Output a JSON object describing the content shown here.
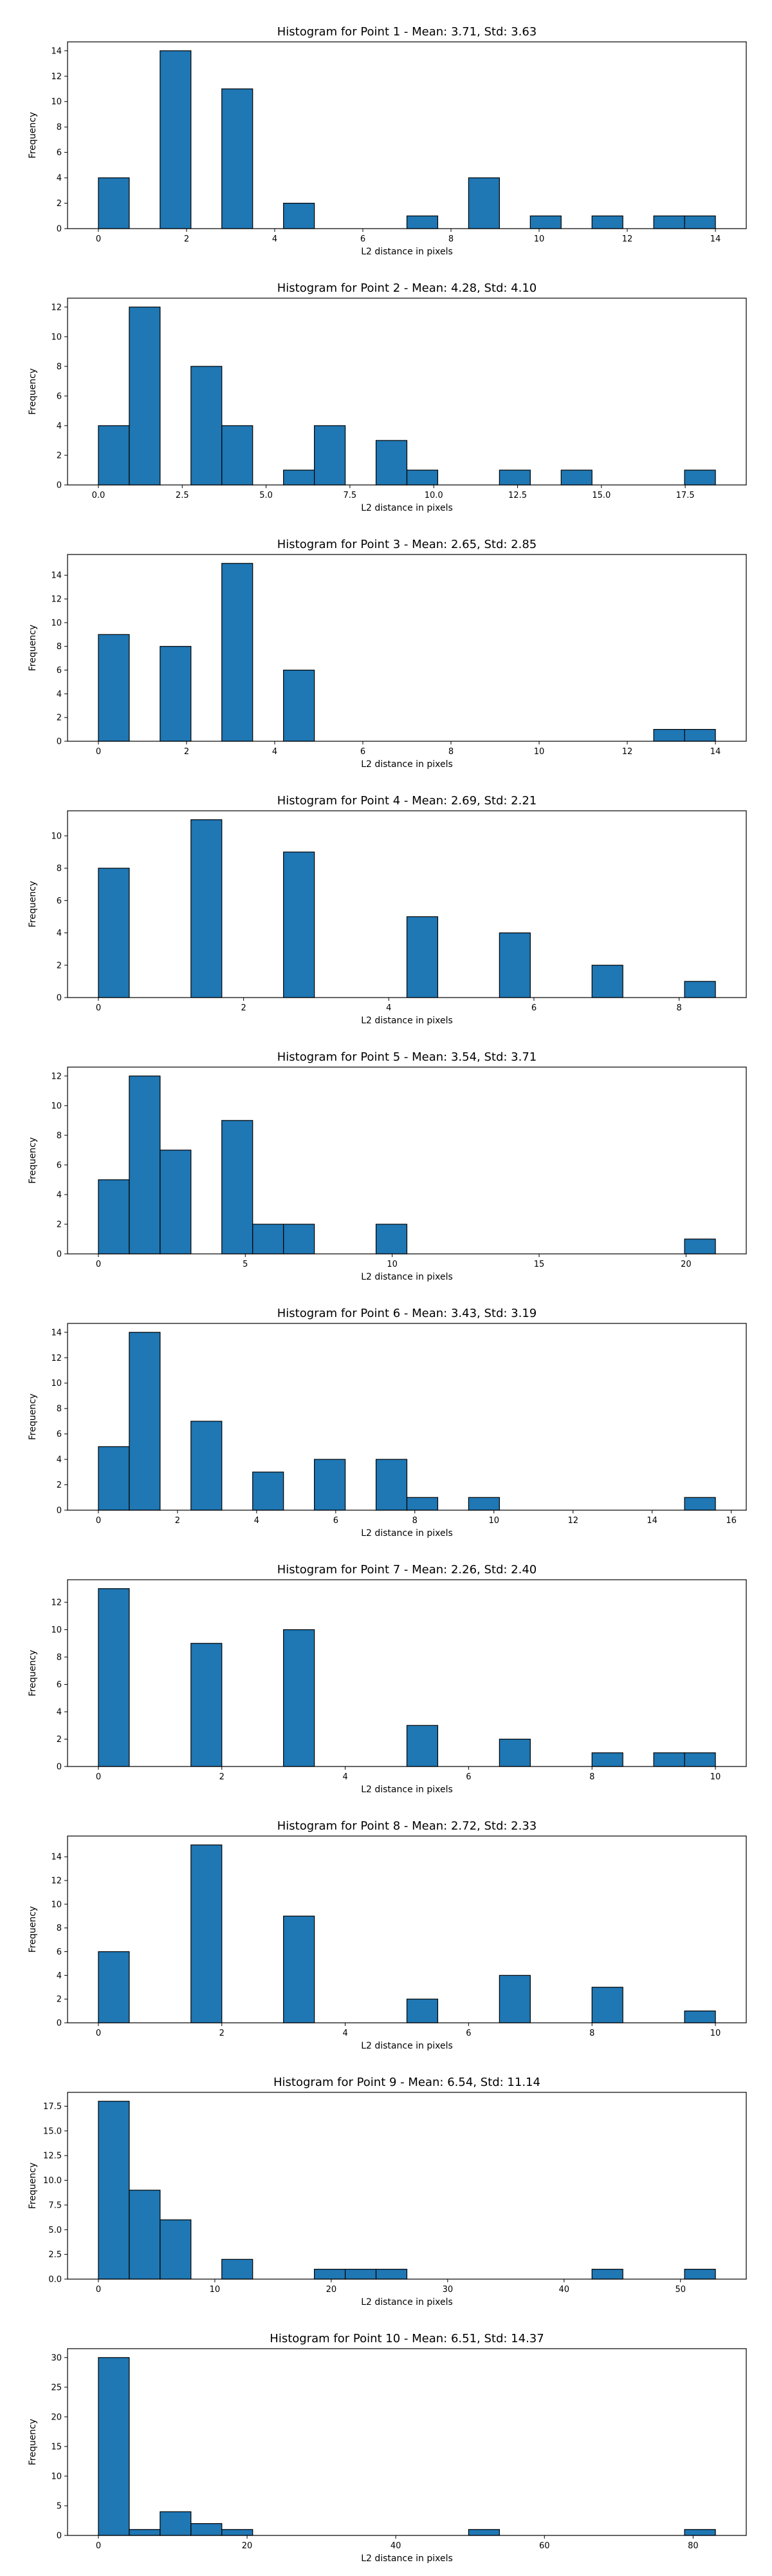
{
  "colors": {
    "bar_fill": "#1f77b4",
    "bar_edge": "#000000",
    "background": "#ffffff"
  },
  "chart_data": [
    {
      "type": "bar",
      "title": "Histogram for Point 1 - Mean: 3.71, Std: 3.63",
      "xlabel": "L2 distance in pixels",
      "ylabel": "Frequency",
      "xlim": [
        -0.7,
        14.7
      ],
      "ylim": [
        0,
        14.7
      ],
      "xticks": [
        0,
        2,
        4,
        6,
        8,
        10,
        12,
        14
      ],
      "xtick_labels": [
        "0",
        "2",
        "4",
        "6",
        "8",
        "10",
        "12",
        "14"
      ],
      "yticks": [
        0,
        2,
        4,
        6,
        8,
        10,
        12,
        14
      ],
      "ytick_labels": [
        "0",
        "2",
        "4",
        "6",
        "8",
        "10",
        "12",
        "14"
      ],
      "bin_edges": [
        0,
        0.7,
        1.4,
        2.1,
        2.8,
        3.5,
        4.2,
        4.9,
        5.6,
        6.3,
        7.0,
        7.7,
        8.4,
        9.1,
        9.8,
        10.5,
        11.2,
        11.9,
        12.6,
        13.3,
        14.0
      ],
      "counts": [
        4,
        0,
        14,
        0,
        11,
        0,
        2,
        0,
        0,
        0,
        1,
        0,
        4,
        0,
        1,
        0,
        1,
        0,
        1,
        1
      ],
      "grid": false,
      "legend": "none"
    },
    {
      "type": "bar",
      "title": "Histogram for Point 2 - Mean: 4.28, Std: 4.10",
      "xlabel": "L2 distance in pixels",
      "ylabel": "Frequency",
      "xlim": [
        -0.92,
        19.32
      ],
      "ylim": [
        0,
        12.6
      ],
      "xticks": [
        0,
        2.5,
        5,
        7.5,
        10,
        12.5,
        15,
        17.5
      ],
      "xtick_labels": [
        "0.0",
        "2.5",
        "5.0",
        "7.5",
        "10.0",
        "12.5",
        "15.0",
        "17.5"
      ],
      "yticks": [
        0,
        2,
        4,
        6,
        8,
        10,
        12
      ],
      "ytick_labels": [
        "0",
        "2",
        "4",
        "6",
        "8",
        "10",
        "12"
      ],
      "bin_edges": [
        0,
        0.92,
        1.84,
        2.76,
        3.68,
        4.6,
        5.52,
        6.44,
        7.36,
        8.28,
        9.2,
        10.12,
        11.04,
        11.96,
        12.88,
        13.8,
        14.72,
        15.64,
        16.56,
        17.48,
        18.4
      ],
      "counts": [
        4,
        12,
        0,
        8,
        4,
        0,
        1,
        4,
        0,
        3,
        1,
        0,
        0,
        1,
        0,
        1,
        0,
        0,
        0,
        1
      ],
      "grid": false,
      "legend": "none"
    },
    {
      "type": "bar",
      "title": "Histogram for Point 3 - Mean: 2.65, Std: 2.85",
      "xlabel": "L2 distance in pixels",
      "ylabel": "Frequency",
      "xlim": [
        -0.7,
        14.7
      ],
      "ylim": [
        0,
        15.75
      ],
      "xticks": [
        0,
        2,
        4,
        6,
        8,
        10,
        12,
        14
      ],
      "xtick_labels": [
        "0",
        "2",
        "4",
        "6",
        "8",
        "10",
        "12",
        "14"
      ],
      "yticks": [
        0,
        2,
        4,
        6,
        8,
        10,
        12,
        14
      ],
      "ytick_labels": [
        "0",
        "2",
        "4",
        "6",
        "8",
        "10",
        "12",
        "14"
      ],
      "bin_edges": [
        0,
        0.7,
        1.4,
        2.1,
        2.8,
        3.5,
        4.2,
        4.9,
        5.6,
        6.3,
        7.0,
        7.7,
        8.4,
        9.1,
        9.8,
        10.5,
        11.2,
        11.9,
        12.6,
        13.3,
        14.0
      ],
      "counts": [
        9,
        0,
        8,
        0,
        15,
        0,
        6,
        0,
        0,
        0,
        0,
        0,
        0,
        0,
        0,
        0,
        0,
        0,
        1,
        1
      ],
      "grid": false,
      "legend": "none"
    },
    {
      "type": "bar",
      "title": "Histogram for Point 4 - Mean: 2.69, Std: 2.21",
      "xlabel": "L2 distance in pixels",
      "ylabel": "Frequency",
      "xlim": [
        -0.425,
        8.925
      ],
      "ylim": [
        0,
        11.55
      ],
      "xticks": [
        0,
        2,
        4,
        6,
        8
      ],
      "xtick_labels": [
        "0",
        "2",
        "4",
        "6",
        "8"
      ],
      "yticks": [
        0,
        2,
        4,
        6,
        8,
        10
      ],
      "ytick_labels": [
        "0",
        "2",
        "4",
        "6",
        "8",
        "10"
      ],
      "bin_edges": [
        0,
        0.425,
        0.85,
        1.275,
        1.7,
        2.125,
        2.55,
        2.975,
        3.4,
        3.825,
        4.25,
        4.675,
        5.1,
        5.525,
        5.95,
        6.375,
        6.8,
        7.225,
        7.65,
        8.075,
        8.5
      ],
      "counts": [
        8,
        0,
        0,
        11,
        0,
        0,
        9,
        0,
        0,
        0,
        5,
        0,
        0,
        4,
        0,
        0,
        2,
        0,
        0,
        1
      ],
      "grid": false,
      "legend": "none"
    },
    {
      "type": "bar",
      "title": "Histogram for Point 5 - Mean: 3.54, Std: 3.71",
      "xlabel": "L2 distance in pixels",
      "ylabel": "Frequency",
      "xlim": [
        -1.05,
        22.05
      ],
      "ylim": [
        0,
        12.6
      ],
      "xticks": [
        0,
        5,
        10,
        15,
        20
      ],
      "xtick_labels": [
        "0",
        "5",
        "10",
        "15",
        "20"
      ],
      "yticks": [
        0,
        2,
        4,
        6,
        8,
        10,
        12
      ],
      "ytick_labels": [
        "0",
        "2",
        "4",
        "6",
        "8",
        "10",
        "12"
      ],
      "bin_edges": [
        0,
        1.05,
        2.1,
        3.15,
        4.2,
        5.25,
        6.3,
        7.35,
        8.4,
        9.45,
        10.5,
        11.55,
        12.6,
        13.65,
        14.7,
        15.75,
        16.8,
        17.85,
        18.9,
        19.95,
        21.0
      ],
      "counts": [
        5,
        12,
        7,
        0,
        9,
        2,
        2,
        0,
        0,
        2,
        0,
        0,
        0,
        0,
        0,
        0,
        0,
        0,
        0,
        1
      ],
      "grid": false,
      "legend": "none"
    },
    {
      "type": "bar",
      "title": "Histogram for Point 6 - Mean: 3.43, Std: 3.19",
      "xlabel": "L2 distance in pixels",
      "ylabel": "Frequency",
      "xlim": [
        -0.78,
        16.38
      ],
      "ylim": [
        0,
        14.7
      ],
      "xticks": [
        0,
        2,
        4,
        6,
        8,
        10,
        12,
        14,
        16
      ],
      "xtick_labels": [
        "0",
        "2",
        "4",
        "6",
        "8",
        "10",
        "12",
        "14",
        "16"
      ],
      "yticks": [
        0,
        2,
        4,
        6,
        8,
        10,
        12,
        14
      ],
      "ytick_labels": [
        "0",
        "2",
        "4",
        "6",
        "8",
        "10",
        "12",
        "14"
      ],
      "bin_edges": [
        0,
        0.78,
        1.56,
        2.34,
        3.12,
        3.9,
        4.68,
        5.46,
        6.24,
        7.02,
        7.8,
        8.58,
        9.36,
        10.14,
        10.92,
        11.7,
        12.48,
        13.26,
        14.04,
        14.82,
        15.6
      ],
      "counts": [
        5,
        14,
        0,
        7,
        0,
        3,
        0,
        4,
        0,
        4,
        1,
        0,
        1,
        0,
        0,
        0,
        0,
        0,
        0,
        1
      ],
      "grid": false,
      "legend": "none"
    },
    {
      "type": "bar",
      "title": "Histogram for Point 7 - Mean: 2.26, Std: 2.40",
      "xlabel": "L2 distance in pixels",
      "ylabel": "Frequency",
      "xlim": [
        -0.5,
        10.5
      ],
      "ylim": [
        0,
        13.65
      ],
      "xticks": [
        0,
        2,
        4,
        6,
        8,
        10
      ],
      "xtick_labels": [
        "0",
        "2",
        "4",
        "6",
        "8",
        "10"
      ],
      "yticks": [
        0,
        2,
        4,
        6,
        8,
        10,
        12
      ],
      "ytick_labels": [
        "0",
        "2",
        "4",
        "6",
        "8",
        "10",
        "12"
      ],
      "bin_edges": [
        0,
        0.5,
        1.0,
        1.5,
        2.0,
        2.5,
        3.0,
        3.5,
        4.0,
        4.5,
        5.0,
        5.5,
        6.0,
        6.5,
        7.0,
        7.5,
        8.0,
        8.5,
        9.0,
        9.5,
        10.0
      ],
      "counts": [
        13,
        0,
        0,
        9,
        0,
        0,
        10,
        0,
        0,
        0,
        3,
        0,
        0,
        2,
        0,
        0,
        1,
        0,
        1,
        1
      ],
      "grid": false,
      "legend": "none"
    },
    {
      "type": "bar",
      "title": "Histogram for Point 8 - Mean: 2.72, Std: 2.33",
      "xlabel": "L2 distance in pixels",
      "ylabel": "Frequency",
      "xlim": [
        -0.5,
        10.5
      ],
      "ylim": [
        0,
        15.75
      ],
      "xticks": [
        0,
        2,
        4,
        6,
        8,
        10
      ],
      "xtick_labels": [
        "0",
        "2",
        "4",
        "6",
        "8",
        "10"
      ],
      "yticks": [
        0,
        2,
        4,
        6,
        8,
        10,
        12,
        14
      ],
      "ytick_labels": [
        "0",
        "2",
        "4",
        "6",
        "8",
        "10",
        "12",
        "14"
      ],
      "bin_edges": [
        0,
        0.5,
        1.0,
        1.5,
        2.0,
        2.5,
        3.0,
        3.5,
        4.0,
        4.5,
        5.0,
        5.5,
        6.0,
        6.5,
        7.0,
        7.5,
        8.0,
        8.5,
        9.0,
        9.5,
        10.0
      ],
      "counts": [
        6,
        0,
        0,
        15,
        0,
        0,
        9,
        0,
        0,
        0,
        2,
        0,
        0,
        4,
        0,
        0,
        3,
        0,
        0,
        1
      ],
      "grid": false,
      "legend": "none"
    },
    {
      "type": "bar",
      "title": "Histogram for Point 9 - Mean: 6.54, Std: 11.14",
      "xlabel": "L2 distance in pixels",
      "ylabel": "Frequency",
      "xlim": [
        -2.65,
        55.65
      ],
      "ylim": [
        0,
        18.9
      ],
      "xticks": [
        0,
        10,
        20,
        30,
        40,
        50
      ],
      "xtick_labels": [
        "0",
        "10",
        "20",
        "30",
        "40",
        "50"
      ],
      "yticks": [
        0,
        2.5,
        5,
        7.5,
        10,
        12.5,
        15,
        17.5
      ],
      "ytick_labels": [
        "0.0",
        "2.5",
        "5.0",
        "7.5",
        "10.0",
        "12.5",
        "15.0",
        "17.5"
      ],
      "bin_edges": [
        0,
        2.65,
        5.3,
        7.95,
        10.6,
        13.25,
        15.9,
        18.55,
        21.2,
        23.85,
        26.5,
        29.15,
        31.8,
        34.45,
        37.1,
        39.75,
        42.4,
        45.05,
        47.7,
        50.35,
        53.0
      ],
      "counts": [
        18,
        9,
        6,
        0,
        2,
        0,
        0,
        1,
        1,
        1,
        0,
        0,
        0,
        0,
        0,
        0,
        1,
        0,
        0,
        1
      ],
      "grid": false,
      "legend": "none"
    },
    {
      "type": "bar",
      "title": "Histogram for Point 10 - Mean: 6.51, Std: 14.37",
      "xlabel": "L2 distance in pixels",
      "ylabel": "Frequency",
      "xlim": [
        -4.15,
        87.15
      ],
      "ylim": [
        0,
        31.5
      ],
      "xticks": [
        0,
        20,
        40,
        60,
        80
      ],
      "xtick_labels": [
        "0",
        "20",
        "40",
        "60",
        "80"
      ],
      "yticks": [
        0,
        5,
        10,
        15,
        20,
        25,
        30
      ],
      "ytick_labels": [
        "0",
        "5",
        "10",
        "15",
        "20",
        "25",
        "30"
      ],
      "bin_edges": [
        0,
        4.15,
        8.3,
        12.45,
        16.6,
        20.75,
        24.9,
        29.05,
        33.2,
        37.35,
        41.5,
        45.65,
        49.8,
        53.95,
        58.1,
        62.25,
        66.4,
        70.55,
        74.7,
        78.85,
        83.0
      ],
      "counts": [
        30,
        1,
        4,
        2,
        1,
        0,
        0,
        0,
        0,
        0,
        0,
        0,
        1,
        0,
        0,
        0,
        0,
        0,
        0,
        1
      ],
      "grid": false,
      "legend": "none"
    }
  ]
}
